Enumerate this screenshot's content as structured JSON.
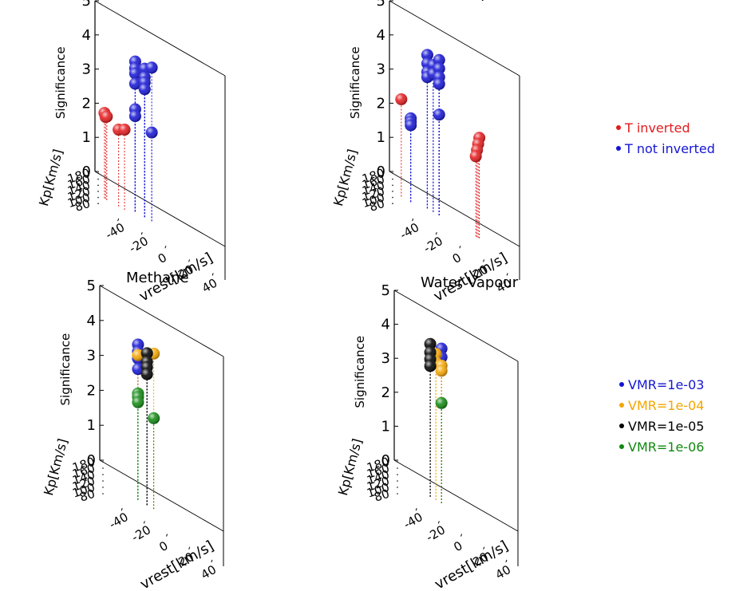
{
  "legend_top": {
    "entries": [
      {
        "label": "T inverted",
        "color": "#e31a1c"
      },
      {
        "label": "T not inverted",
        "color": "#1515d4"
      }
    ]
  },
  "legend_bottom": {
    "entries": [
      {
        "label": "VMR=1e-03",
        "color": "#1515d4"
      },
      {
        "label": "VMR=1e-04",
        "color": "#f5a500"
      },
      {
        "label": "VMR=1e-05",
        "color": "#000000"
      },
      {
        "label": "VMR=1e-06",
        "color": "#118811"
      }
    ]
  },
  "chart_data": [
    {
      "type": "scatter",
      "title": "Methane",
      "xlabel": "vrest[km/s]",
      "ylabel": "Kp[Km/s]",
      "zlabel": "Significance",
      "xlim": [
        -60,
        50
      ],
      "ylim": [
        70,
        180
      ],
      "zlim": [
        0,
        5
      ],
      "xticks": [
        -40,
        -20,
        0,
        20,
        40
      ],
      "yticks": [
        80,
        100,
        120,
        140,
        160,
        180
      ],
      "zticks": [
        0,
        1,
        2,
        3,
        4,
        5
      ],
      "series": [
        {
          "name": "T inverted",
          "color": "#e31a1c",
          "points": [
            {
              "x": -52,
              "y": 110,
              "z": 2.5
            },
            {
              "x": -51,
              "y": 110,
              "z": 2.4
            },
            {
              "x": -50,
              "y": 108,
              "z": 2.45
            },
            {
              "x": -40,
              "y": 110,
              "z": 2.25
            },
            {
              "x": -35,
              "y": 110,
              "z": 2.35
            }
          ]
        },
        {
          "name": "T not inverted",
          "color": "#1515d4",
          "points": [
            {
              "x": -26,
              "y": 124,
              "z": 4.4
            },
            {
              "x": -26,
              "y": 124,
              "z": 4.2
            },
            {
              "x": -26,
              "y": 124,
              "z": 4.05
            },
            {
              "x": -26,
              "y": 124,
              "z": 3.75
            },
            {
              "x": -26,
              "y": 124,
              "z": 3.0
            },
            {
              "x": -26,
              "y": 124,
              "z": 2.8
            },
            {
              "x": -18,
              "y": 124,
              "z": 4.35
            },
            {
              "x": -18,
              "y": 124,
              "z": 4.1
            },
            {
              "x": -18,
              "y": 124,
              "z": 3.95
            },
            {
              "x": -18,
              "y": 124,
              "z": 3.75
            },
            {
              "x": -12,
              "y": 124,
              "z": 4.5
            },
            {
              "x": -12,
              "y": 124,
              "z": 2.6
            }
          ]
        }
      ]
    },
    {
      "type": "scatter",
      "title": "Water Vapour",
      "xlabel": "vrest[km/s]",
      "ylabel": "Kp[Km/s]",
      "zlabel": "Significance",
      "xlim": [
        -60,
        50
      ],
      "ylim": [
        70,
        180
      ],
      "zlim": [
        0,
        5
      ],
      "xticks": [
        -40,
        -20,
        0,
        20,
        40
      ],
      "yticks": [
        80,
        100,
        120,
        140,
        160,
        180
      ],
      "zticks": [
        0,
        1,
        2,
        3,
        4,
        5
      ],
      "series": [
        {
          "name": "T inverted",
          "color": "#e31a1c",
          "points": [
            {
              "x": -50,
              "y": 120,
              "z": 2.85
            },
            {
              "x": 16,
              "y": 130,
              "z": 2.95
            },
            {
              "x": 15,
              "y": 130,
              "z": 2.75
            },
            {
              "x": 14,
              "y": 130,
              "z": 2.55
            },
            {
              "x": 13,
              "y": 130,
              "z": 2.35
            }
          ]
        },
        {
          "name": "T not inverted",
          "color": "#1515d4",
          "points": [
            {
              "x": -42,
              "y": 120,
              "z": 2.45
            },
            {
              "x": -42,
              "y": 120,
              "z": 2.35
            },
            {
              "x": -42,
              "y": 120,
              "z": 2.25
            },
            {
              "x": -28,
              "y": 130,
              "z": 4.5
            },
            {
              "x": -28,
              "y": 130,
              "z": 4.25
            },
            {
              "x": -28,
              "y": 130,
              "z": 4.0
            },
            {
              "x": -28,
              "y": 130,
              "z": 3.85
            },
            {
              "x": -23,
              "y": 130,
              "z": 4.3
            },
            {
              "x": -23,
              "y": 130,
              "z": 4.05
            },
            {
              "x": -18,
              "y": 130,
              "z": 4.55
            },
            {
              "x": -18,
              "y": 130,
              "z": 4.3
            },
            {
              "x": -18,
              "y": 130,
              "z": 4.05
            },
            {
              "x": -18,
              "y": 130,
              "z": 3.85
            },
            {
              "x": -18,
              "y": 130,
              "z": 2.95
            }
          ]
        }
      ]
    },
    {
      "type": "scatter",
      "title": "Methane",
      "xlabel": "vrest[km/s]",
      "ylabel": "Kp[Km/s]",
      "zlabel": "Significance",
      "xlim": [
        -60,
        50
      ],
      "ylim": [
        70,
        180
      ],
      "zlim": [
        0,
        5
      ],
      "xticks": [
        -40,
        -20,
        0,
        20,
        40
      ],
      "yticks": [
        80,
        100,
        120,
        140,
        160,
        180
      ],
      "zticks": [
        0,
        1,
        2,
        3,
        4,
        5
      ],
      "series": [
        {
          "name": "VMR=1e-03",
          "color": "#1515d4",
          "points": [
            {
              "x": -26,
              "y": 124,
              "z": 4.45
            },
            {
              "x": -26,
              "y": 124,
              "z": 4.25
            },
            {
              "x": -26,
              "y": 124,
              "z": 4.05
            },
            {
              "x": -26,
              "y": 124,
              "z": 3.75
            }
          ]
        },
        {
          "name": "VMR=1e-04",
          "color": "#f5a500",
          "points": [
            {
              "x": -26,
              "y": 124,
              "z": 4.15
            },
            {
              "x": -12,
              "y": 124,
              "z": 4.45
            }
          ]
        },
        {
          "name": "VMR=1e-05",
          "color": "#000000",
          "points": [
            {
              "x": -18,
              "y": 124,
              "z": 4.35
            },
            {
              "x": -18,
              "y": 124,
              "z": 4.1
            },
            {
              "x": -18,
              "y": 124,
              "z": 3.95
            },
            {
              "x": -18,
              "y": 124,
              "z": 3.75
            }
          ]
        },
        {
          "name": "VMR=1e-06",
          "color": "#118811",
          "points": [
            {
              "x": -26,
              "y": 124,
              "z": 3.05
            },
            {
              "x": -26,
              "y": 124,
              "z": 2.95
            },
            {
              "x": -26,
              "y": 124,
              "z": 2.8
            },
            {
              "x": -12,
              "y": 124,
              "z": 2.6
            }
          ]
        }
      ]
    },
    {
      "type": "scatter",
      "title": "Water Vapour",
      "xlabel": "vrest[km/s]",
      "ylabel": "Kp[Km/s]",
      "zlabel": "Significance",
      "xlim": [
        -60,
        50
      ],
      "ylim": [
        70,
        180
      ],
      "zlim": [
        0,
        5
      ],
      "xticks": [
        -40,
        -20,
        0,
        20,
        40
      ],
      "yticks": [
        80,
        100,
        120,
        140,
        160,
        180
      ],
      "zticks": [
        0,
        1,
        2,
        3,
        4,
        5
      ],
      "series": [
        {
          "name": "VMR=1e-03",
          "color": "#1515d4",
          "points": [
            {
              "x": -18,
              "y": 130,
              "z": 4.55
            },
            {
              "x": -18,
              "y": 130,
              "z": 4.3
            }
          ]
        },
        {
          "name": "VMR=1e-04",
          "color": "#f5a500",
          "points": [
            {
              "x": -23,
              "y": 130,
              "z": 4.3
            },
            {
              "x": -23,
              "y": 130,
              "z": 4.05
            },
            {
              "x": -18,
              "y": 130,
              "z": 4.05
            },
            {
              "x": -18,
              "y": 130,
              "z": 3.9
            }
          ]
        },
        {
          "name": "VMR=1e-05",
          "color": "#000000",
          "points": [
            {
              "x": -28,
              "y": 130,
              "z": 4.5
            },
            {
              "x": -28,
              "y": 130,
              "z": 4.25
            },
            {
              "x": -28,
              "y": 130,
              "z": 4.05
            },
            {
              "x": -28,
              "y": 130,
              "z": 3.85
            }
          ]
        },
        {
          "name": "VMR=1e-06",
          "color": "#118811",
          "points": [
            {
              "x": -18,
              "y": 130,
              "z": 2.95
            }
          ]
        }
      ]
    }
  ]
}
